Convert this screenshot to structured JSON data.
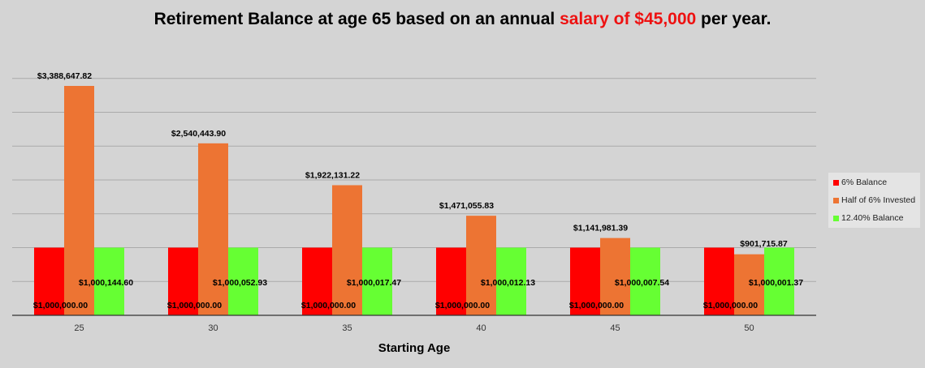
{
  "title": {
    "prefix": "Retirement Balance at age 65 based on an annual ",
    "highlight": "salary of $45,000",
    "suffix": " per year."
  },
  "colors": {
    "background": "#d4d4d4",
    "title_highlight": "#ee1111",
    "gridline": "#aaaaaa",
    "axis": "#333333"
  },
  "chart_data": {
    "type": "bar",
    "title": "Retirement Balance at age 65 based on an annual salary of $45,000 per year.",
    "xlabel": "Starting Age",
    "ylabel": "",
    "categories": [
      "25",
      "30",
      "35",
      "40",
      "45",
      "50"
    ],
    "grid": true,
    "legend_position": "right",
    "series": [
      {
        "name": "6% Balance",
        "color": "#ff0000",
        "values": [
          1000000.0,
          1000000.0,
          1000000.0,
          1000000.0,
          1000000.0,
          1000000.0
        ],
        "labels": [
          "$1,000,000.00",
          "$1,000,000.00",
          "$1,000,000.00",
          "$1,000,000.00",
          "$1,000,000.00",
          "$1,000,000.00"
        ]
      },
      {
        "name": "Half of 6% Invested",
        "color": "#ed7433",
        "values": [
          3388647.82,
          2540443.9,
          1922131.22,
          1471055.83,
          1141981.39,
          901715.87
        ],
        "labels": [
          "$3,388,647.82",
          "$2,540,443.90",
          "$1,922,131.22",
          "$1,471,055.83",
          "$1,141,981.39",
          "$901,715.87"
        ]
      },
      {
        "name": "12.40% Balance",
        "color": "#66ff33",
        "values": [
          1000144.6,
          1000052.93,
          1000017.47,
          1000012.13,
          1000007.54,
          1000001.37
        ],
        "labels": [
          "$1,000,144.60",
          "$1,000,052.93",
          "$1,000,017.47",
          "$1,000,012.13",
          "$1,000,007.54",
          "$1,000,001.37"
        ]
      }
    ]
  }
}
